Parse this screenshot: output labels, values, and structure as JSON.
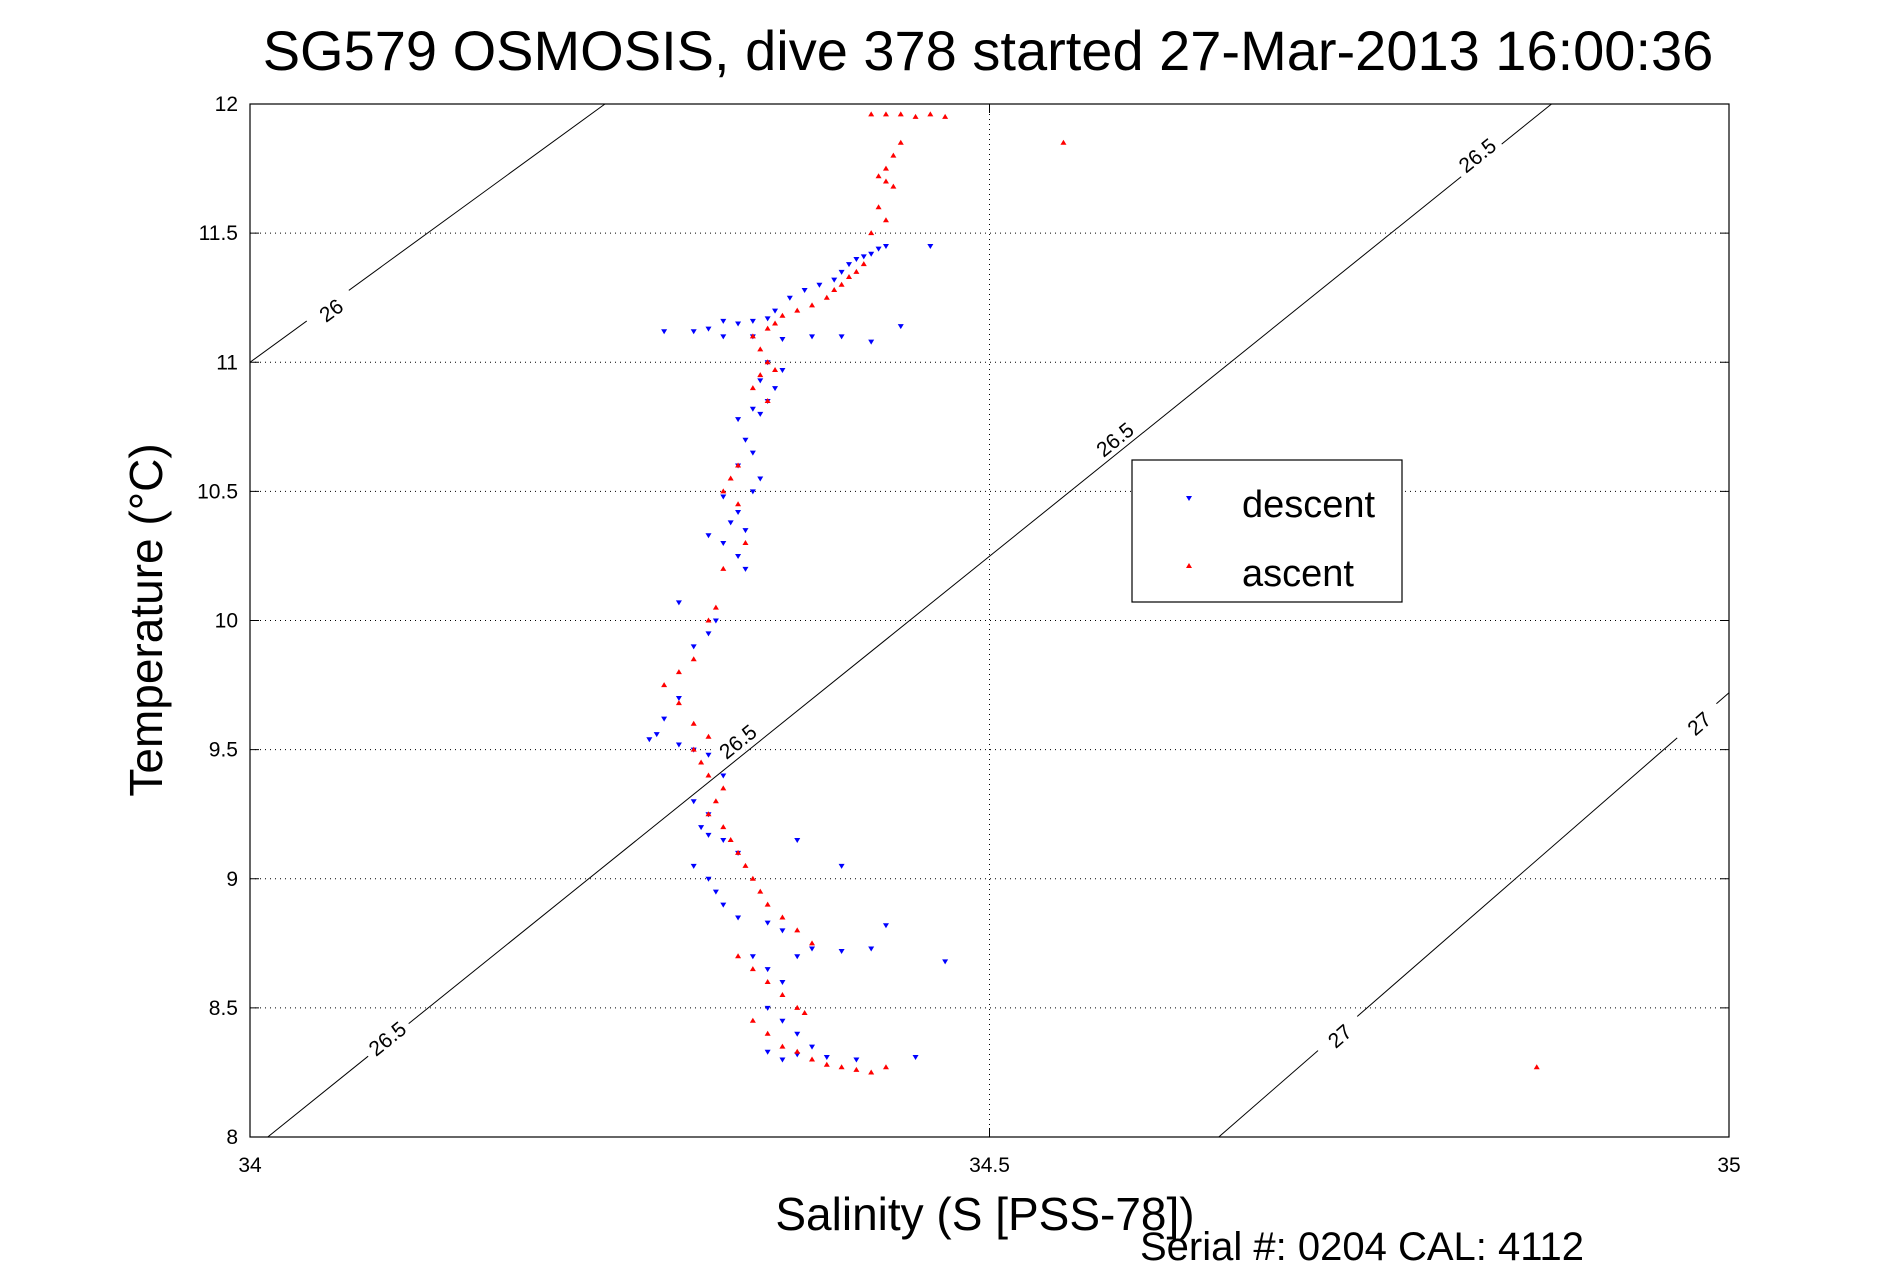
{
  "chart_data": {
    "type": "scatter",
    "title": "SG579 OSMOSIS, dive 378 started 27-Mar-2013 16:00:36",
    "xlabel": "Salinity (S [PSS-78])",
    "ylabel": "Temperature (°C)",
    "xlim": [
      34,
      35
    ],
    "ylim": [
      8,
      12
    ],
    "xticks": [
      34,
      34.5,
      35
    ],
    "xtick_labels": [
      "34",
      "34.5",
      "35"
    ],
    "yticks": [
      8,
      8.5,
      9,
      9.5,
      10,
      10.5,
      11,
      11.5,
      12
    ],
    "ytick_labels": [
      "8",
      "8.5",
      "9",
      "9.5",
      "10",
      "10.5",
      "11",
      "11.5",
      "12"
    ],
    "grid": true,
    "legend_position": "right-middle",
    "footer": "Serial #: 0204  CAL: 4112",
    "density_contours": [
      {
        "level_label": "26",
        "from": [
          34.0,
          11.0
        ],
        "to": [
          34.24,
          12.0
        ],
        "label_at": [
          34.055,
          11.2
        ]
      },
      {
        "level_label": "26.5",
        "from": [
          34.012,
          8.0
        ],
        "to": [
          34.88,
          12.0
        ],
        "labels_at": [
          [
            34.093,
            8.38
          ],
          [
            34.33,
            9.53
          ],
          [
            34.585,
            10.7
          ],
          [
            34.83,
            11.8
          ]
        ]
      },
      {
        "level_label": "27",
        "from": [
          34.655,
          8.0
        ],
        "to": [
          35.0,
          9.72
        ],
        "labels_at": [
          [
            34.737,
            8.39
          ],
          [
            34.98,
            9.6
          ]
        ]
      }
    ],
    "series": [
      {
        "name": "descent",
        "color": "#0000ff",
        "marker": "triangle-down",
        "x": [
          34.43,
          34.425,
          34.42,
          34.415,
          34.41,
          34.405,
          34.4,
          34.395,
          34.385,
          34.375,
          34.365,
          34.355,
          34.35,
          34.34,
          34.33,
          34.32,
          34.31,
          34.3,
          34.32,
          34.34,
          34.36,
          34.38,
          34.4,
          34.42,
          34.35,
          34.36,
          34.345,
          34.355,
          34.35,
          34.34,
          34.345,
          34.33,
          34.335,
          34.34,
          34.33,
          34.345,
          34.34,
          34.32,
          34.33,
          34.325,
          34.335,
          34.31,
          34.32,
          34.33,
          34.335,
          34.315,
          34.31,
          34.3,
          34.29,
          34.28,
          34.275,
          34.27,
          34.29,
          34.3,
          34.31,
          34.32,
          34.3,
          34.31,
          34.305,
          34.31,
          34.32,
          34.33,
          34.3,
          34.31,
          34.315,
          34.32,
          34.33,
          34.35,
          34.36,
          34.34,
          34.35,
          34.36,
          34.38,
          34.37,
          34.4,
          34.42,
          34.35,
          34.36,
          34.37,
          34.38,
          34.35,
          34.36,
          34.37,
          34.39,
          34.41,
          34.45,
          34.37,
          34.4,
          34.43,
          34.47,
          34.46,
          34.44,
          34.29,
          34.28
        ],
        "y": [
          11.45,
          11.44,
          11.42,
          11.41,
          11.4,
          11.38,
          11.35,
          11.32,
          11.3,
          11.28,
          11.25,
          11.2,
          11.17,
          11.16,
          11.15,
          11.16,
          11.13,
          11.12,
          11.1,
          11.1,
          11.09,
          11.1,
          11.1,
          11.08,
          11.0,
          10.97,
          10.93,
          10.9,
          10.85,
          10.82,
          10.8,
          10.78,
          10.7,
          10.65,
          10.6,
          10.55,
          10.5,
          10.48,
          10.42,
          10.38,
          10.35,
          10.33,
          10.3,
          10.25,
          10.2,
          10.0,
          9.95,
          9.9,
          9.7,
          9.62,
          9.56,
          9.54,
          9.52,
          9.5,
          9.48,
          9.4,
          9.3,
          9.25,
          9.2,
          9.17,
          9.15,
          9.1,
          9.05,
          9.0,
          8.95,
          8.9,
          8.85,
          8.83,
          8.8,
          8.7,
          8.65,
          8.6,
          8.73,
          8.7,
          8.72,
          8.73,
          8.5,
          8.45,
          8.4,
          8.35,
          8.33,
          8.3,
          8.32,
          8.31,
          8.3,
          8.31,
          9.15,
          9.05,
          8.82,
          8.68,
          11.45,
          11.14,
          10.07,
          11.12
        ]
      },
      {
        "name": "ascent",
        "color": "#ff0000",
        "marker": "triangle-up",
        "x": [
          34.42,
          34.43,
          34.44,
          34.45,
          34.46,
          34.47,
          34.44,
          34.435,
          34.43,
          34.425,
          34.43,
          34.435,
          34.425,
          34.43,
          34.42,
          34.415,
          34.41,
          34.405,
          34.4,
          34.395,
          34.39,
          34.38,
          34.37,
          34.36,
          34.355,
          34.35,
          34.34,
          34.345,
          34.35,
          34.355,
          34.345,
          34.34,
          34.35,
          34.33,
          34.325,
          34.32,
          34.33,
          34.335,
          34.32,
          34.315,
          34.31,
          34.3,
          34.29,
          34.28,
          34.29,
          34.3,
          34.31,
          34.3,
          34.305,
          34.31,
          34.32,
          34.315,
          34.31,
          34.32,
          34.325,
          34.33,
          34.335,
          34.34,
          34.345,
          34.35,
          34.36,
          34.37,
          34.38,
          34.33,
          34.34,
          34.35,
          34.36,
          34.37,
          34.375,
          34.34,
          34.35,
          34.36,
          34.37,
          34.38,
          34.39,
          34.4,
          34.41,
          34.42,
          34.43,
          34.55,
          34.87
        ],
        "y": [
          11.96,
          11.96,
          11.96,
          11.95,
          11.96,
          11.95,
          11.85,
          11.8,
          11.75,
          11.72,
          11.7,
          11.68,
          11.6,
          11.55,
          11.5,
          11.38,
          11.35,
          11.33,
          11.3,
          11.28,
          11.25,
          11.22,
          11.2,
          11.18,
          11.15,
          11.13,
          11.1,
          11.05,
          11.0,
          10.97,
          10.95,
          10.9,
          10.85,
          10.6,
          10.55,
          10.5,
          10.45,
          10.3,
          10.2,
          10.05,
          10.0,
          9.85,
          9.8,
          9.75,
          9.68,
          9.6,
          9.55,
          9.5,
          9.45,
          9.4,
          9.35,
          9.3,
          9.25,
          9.2,
          9.15,
          9.1,
          9.05,
          9.0,
          8.95,
          8.9,
          8.85,
          8.8,
          8.75,
          8.7,
          8.65,
          8.6,
          8.55,
          8.5,
          8.48,
          8.45,
          8.4,
          8.35,
          8.33,
          8.3,
          8.28,
          8.27,
          8.26,
          8.25,
          8.27,
          11.85,
          8.27
        ]
      }
    ]
  }
}
